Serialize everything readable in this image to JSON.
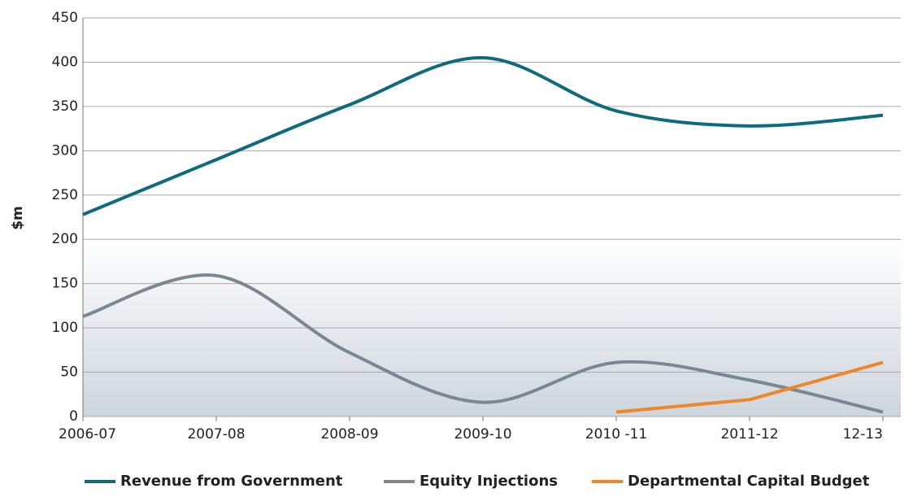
{
  "chart_data": {
    "type": "line",
    "y_label": "$m",
    "categories": [
      "2006-07",
      "2007-08",
      "2008-09",
      "2009-10",
      "2010 -11",
      "2011-12",
      "12-13"
    ],
    "series": [
      {
        "name": "Revenue from Government",
        "color": "#0e6b7f",
        "values": [
          228,
          290,
          352,
          405,
          345,
          328,
          340
        ]
      },
      {
        "name": "Equity Injections",
        "color": "#7a8891",
        "values": [
          113,
          159,
          72,
          16,
          61,
          41,
          5
        ]
      },
      {
        "name": "Departmental Capital Budget",
        "color": "#f0862a",
        "values": [
          null,
          null,
          null,
          null,
          5,
          19,
          61
        ]
      }
    ],
    "ylim": [
      0,
      450
    ],
    "yticks": [
      0,
      50,
      100,
      150,
      200,
      250,
      300,
      350,
      400,
      450
    ],
    "grid": true,
    "legend": "bottom"
  }
}
